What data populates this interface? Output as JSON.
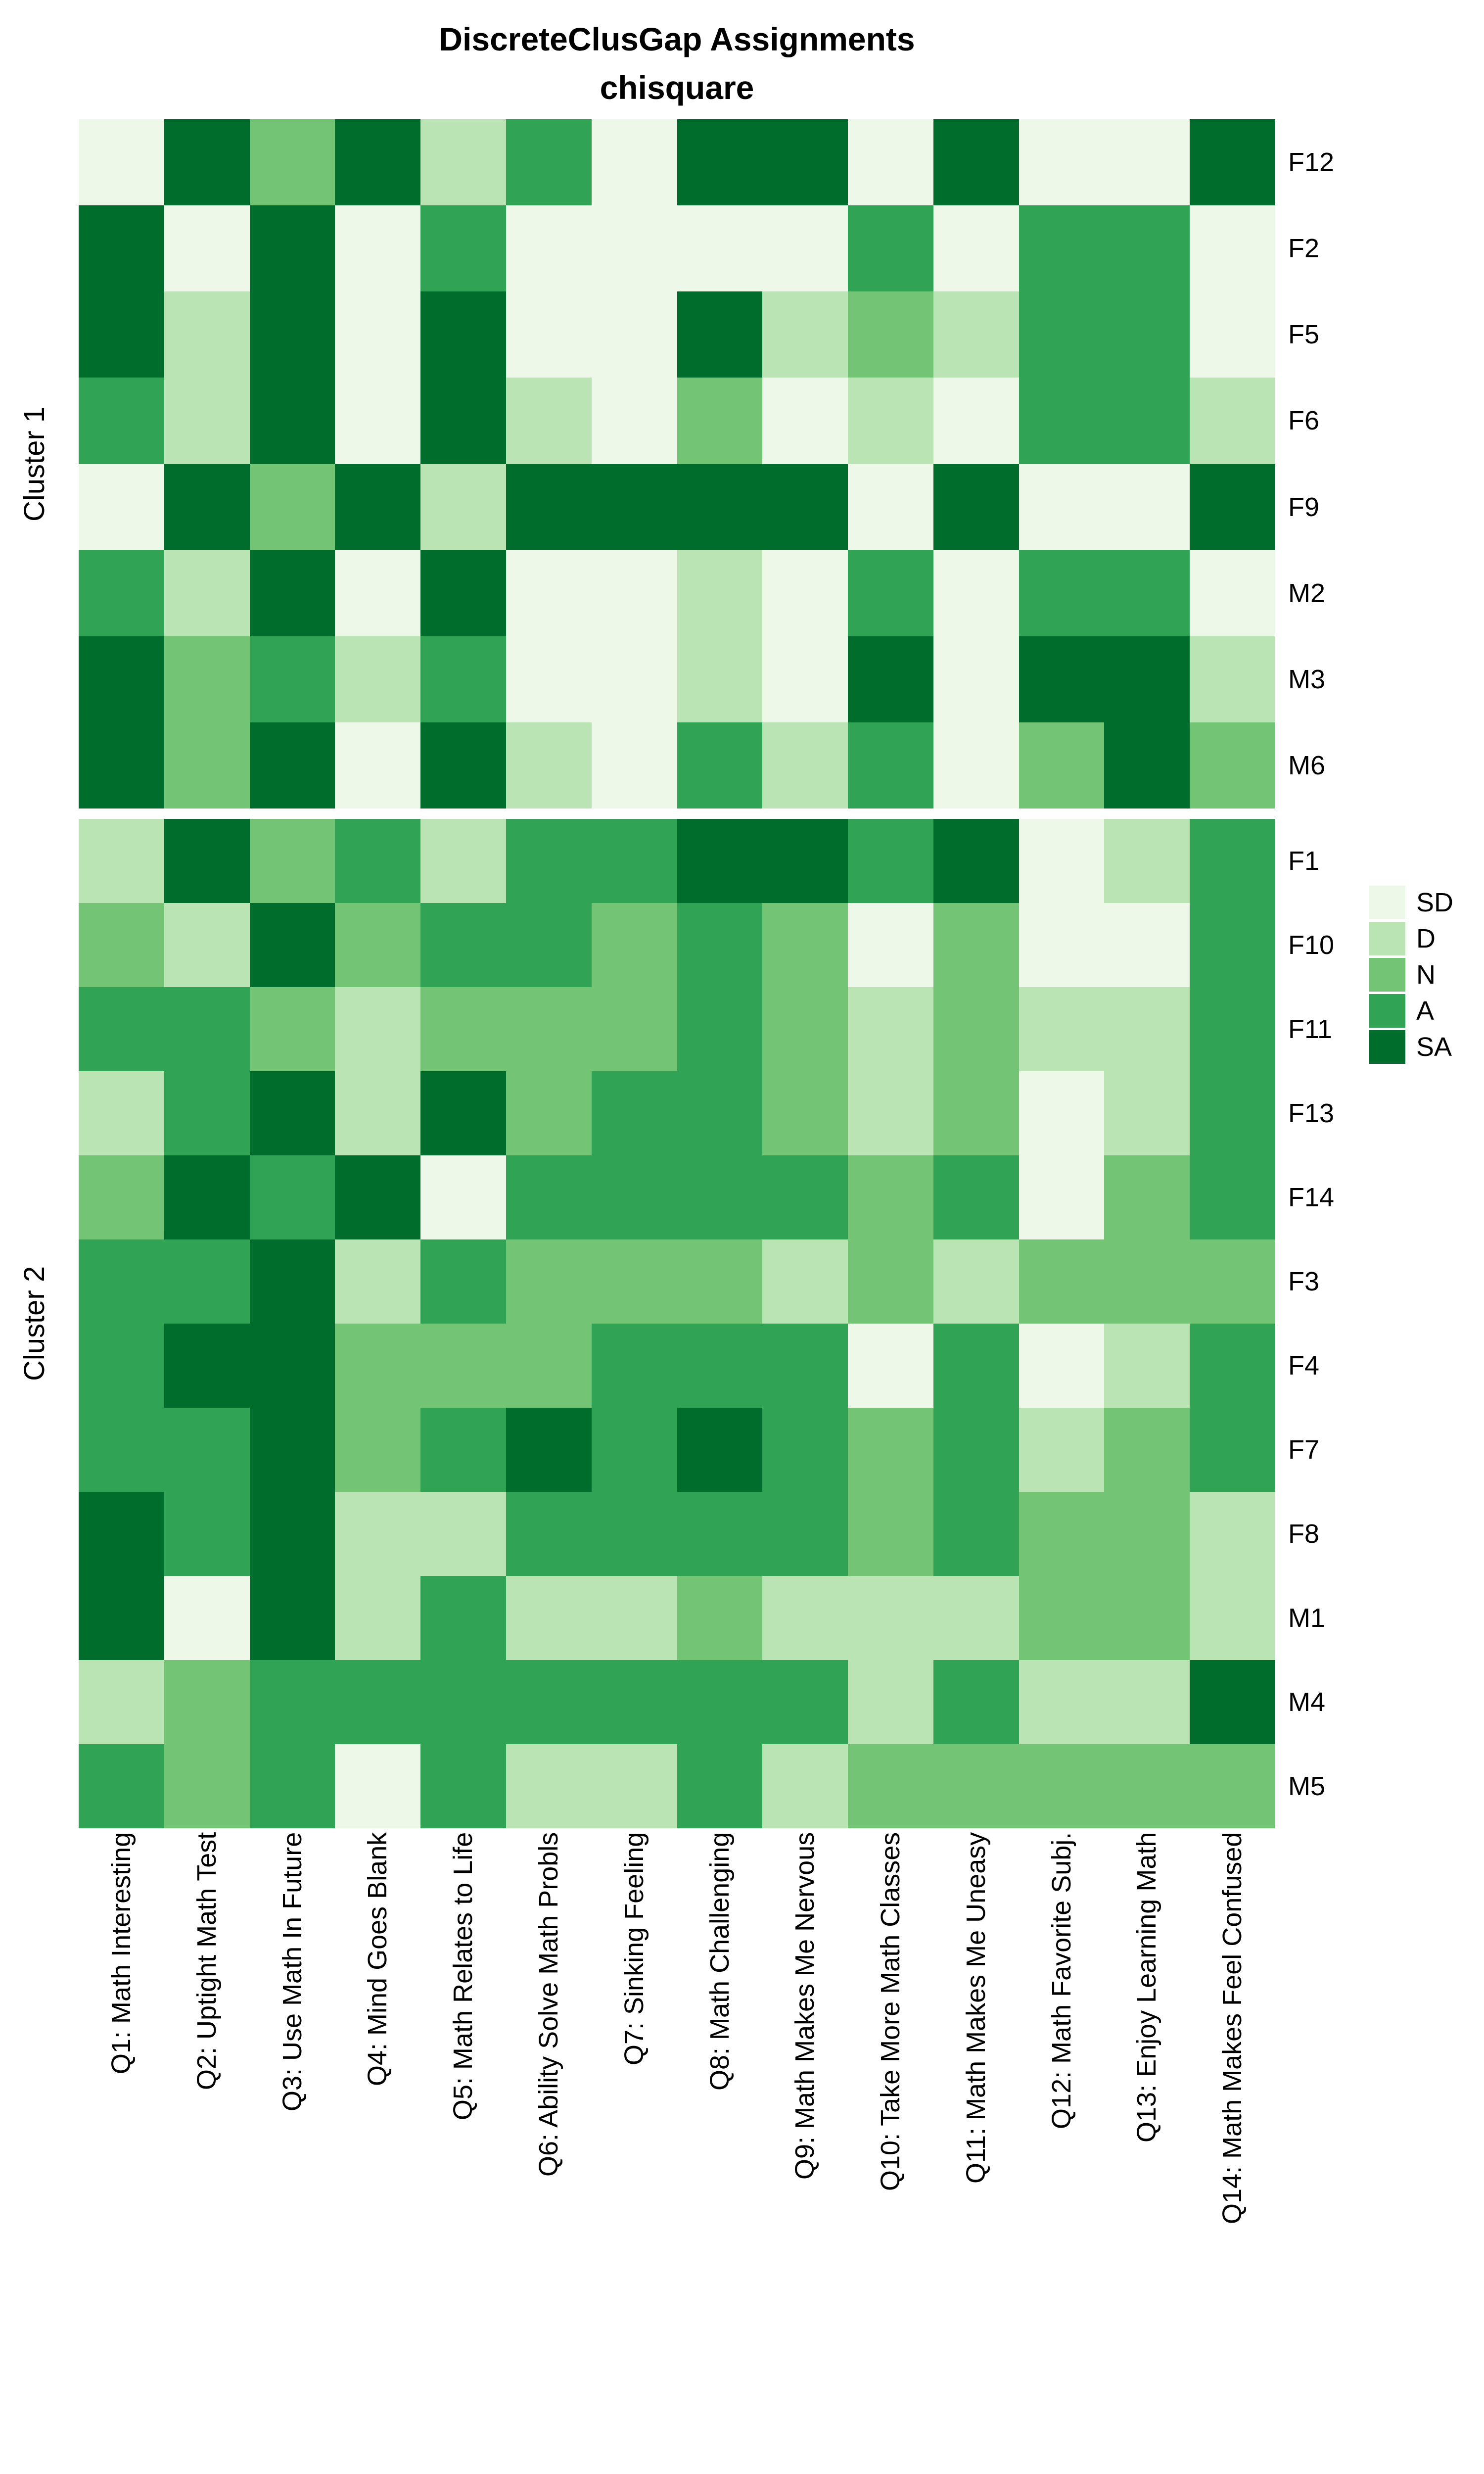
{
  "chart_data": {
    "type": "heatmap",
    "title": "DiscreteClusGap Assignments",
    "subtitle": "chisquare",
    "grid": false,
    "legend_position": "right",
    "value_scale": [
      "SD",
      "D",
      "N",
      "A",
      "SA"
    ],
    "colors": {
      "SD": "#edf8e9",
      "D": "#bae4b3",
      "N": "#74c476",
      "A": "#31a354",
      "SA": "#006d2c"
    },
    "legend": {
      "items": [
        {
          "label": "SD",
          "color": "#edf8e9"
        },
        {
          "label": "D",
          "color": "#bae4b3"
        },
        {
          "label": "N",
          "color": "#74c476"
        },
        {
          "label": "A",
          "color": "#31a354"
        },
        {
          "label": "SA",
          "color": "#006d2c"
        }
      ]
    },
    "columns": [
      "Q1: Math Interesting",
      "Q2: Uptight Math Test",
      "Q3: Use Math In Future",
      "Q4: Mind Goes Blank",
      "Q5: Math Relates to Life",
      "Q6: Ability Solve Math Probls",
      "Q7: Sinking Feeling",
      "Q8: Math Challenging",
      "Q9: Math Makes Me Nervous",
      "Q10: Take More Math Classes",
      "Q11: Math Makes Me Uneasy",
      "Q12: Math Favorite Subj.",
      "Q13: Enjoy Learning Math",
      "Q14: Math Makes Feel Confused"
    ],
    "clusters": [
      {
        "label": "Cluster 1",
        "rows": [
          {
            "label": "F12",
            "values": [
              "SD",
              "SA",
              "N",
              "SA",
              "D",
              "A",
              "SD",
              "SA",
              "SA",
              "SD",
              "SA",
              "SD",
              "SD",
              "SA"
            ]
          },
          {
            "label": "F2",
            "values": [
              "SA",
              "SD",
              "SA",
              "SD",
              "A",
              "SD",
              "SD",
              "SD",
              "SD",
              "A",
              "SD",
              "A",
              "A",
              "SD"
            ]
          },
          {
            "label": "F5",
            "values": [
              "SA",
              "D",
              "SA",
              "SD",
              "SA",
              "SD",
              "SD",
              "SA",
              "D",
              "N",
              "D",
              "A",
              "A",
              "SD"
            ]
          },
          {
            "label": "F6",
            "values": [
              "A",
              "D",
              "SA",
              "SD",
              "SA",
              "D",
              "SD",
              "N",
              "SD",
              "D",
              "SD",
              "A",
              "A",
              "D"
            ]
          },
          {
            "label": "F9",
            "values": [
              "SD",
              "SA",
              "N",
              "SA",
              "D",
              "SA",
              "SA",
              "SA",
              "SA",
              "SD",
              "SA",
              "SD",
              "SD",
              "SA"
            ]
          },
          {
            "label": "M2",
            "values": [
              "A",
              "D",
              "SA",
              "SD",
              "SA",
              "SD",
              "SD",
              "D",
              "SD",
              "A",
              "SD",
              "A",
              "A",
              "SD"
            ]
          },
          {
            "label": "M3",
            "values": [
              "SA",
              "N",
              "A",
              "D",
              "A",
              "SD",
              "SD",
              "D",
              "SD",
              "SA",
              "SD",
              "SA",
              "SA",
              "D"
            ]
          },
          {
            "label": "M6",
            "values": [
              "SA",
              "N",
              "SA",
              "SD",
              "SA",
              "D",
              "SD",
              "A",
              "D",
              "A",
              "SD",
              "N",
              "SA",
              "N"
            ]
          }
        ]
      },
      {
        "label": "Cluster 2",
        "rows": [
          {
            "label": "F1",
            "values": [
              "D",
              "SA",
              "N",
              "A",
              "D",
              "A",
              "A",
              "SA",
              "SA",
              "A",
              "SA",
              "SD",
              "D",
              "A"
            ]
          },
          {
            "label": "F10",
            "values": [
              "N",
              "D",
              "SA",
              "N",
              "A",
              "A",
              "N",
              "A",
              "N",
              "SD",
              "N",
              "SD",
              "SD",
              "A"
            ]
          },
          {
            "label": "F11",
            "values": [
              "A",
              "A",
              "N",
              "D",
              "N",
              "N",
              "N",
              "A",
              "N",
              "D",
              "N",
              "D",
              "D",
              "A"
            ]
          },
          {
            "label": "F13",
            "values": [
              "D",
              "A",
              "SA",
              "D",
              "SA",
              "N",
              "A",
              "A",
              "N",
              "D",
              "N",
              "SD",
              "D",
              "A"
            ]
          },
          {
            "label": "F14",
            "values": [
              "N",
              "SA",
              "A",
              "SA",
              "SD",
              "A",
              "A",
              "A",
              "A",
              "N",
              "A",
              "SD",
              "N",
              "A"
            ]
          },
          {
            "label": "F3",
            "values": [
              "A",
              "A",
              "SA",
              "D",
              "A",
              "N",
              "N",
              "N",
              "D",
              "N",
              "D",
              "N",
              "N",
              "N"
            ]
          },
          {
            "label": "F4",
            "values": [
              "A",
              "SA",
              "SA",
              "N",
              "N",
              "N",
              "A",
              "A",
              "A",
              "SD",
              "A",
              "SD",
              "D",
              "A"
            ]
          },
          {
            "label": "F7",
            "values": [
              "A",
              "A",
              "SA",
              "N",
              "A",
              "SA",
              "A",
              "SA",
              "A",
              "N",
              "A",
              "D",
              "N",
              "A"
            ]
          },
          {
            "label": "F8",
            "values": [
              "SA",
              "A",
              "SA",
              "D",
              "D",
              "A",
              "A",
              "A",
              "A",
              "N",
              "A",
              "N",
              "N",
              "D"
            ]
          },
          {
            "label": "M1",
            "values": [
              "SA",
              "SD",
              "SA",
              "D",
              "A",
              "D",
              "D",
              "N",
              "D",
              "D",
              "D",
              "N",
              "N",
              "D"
            ]
          },
          {
            "label": "M4",
            "values": [
              "D",
              "N",
              "A",
              "A",
              "A",
              "A",
              "A",
              "A",
              "A",
              "D",
              "A",
              "D",
              "D",
              "SA"
            ]
          },
          {
            "label": "M5",
            "values": [
              "A",
              "N",
              "A",
              "SD",
              "A",
              "D",
              "D",
              "A",
              "D",
              "N",
              "N",
              "N",
              "N",
              "N"
            ]
          }
        ]
      }
    ]
  }
}
